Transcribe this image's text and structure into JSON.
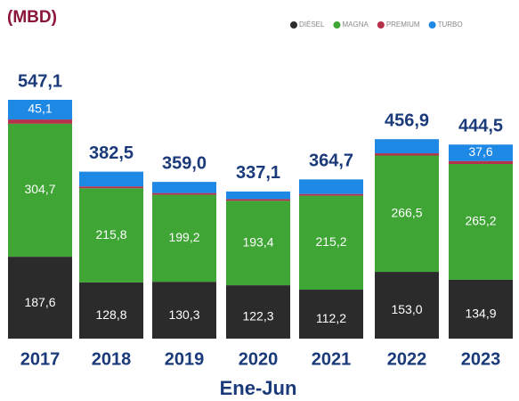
{
  "chart_data": {
    "type": "stacked_bar",
    "title": "(MBD)",
    "x_label": "Ene-Jun",
    "categories": [
      "2017",
      "2018",
      "2019",
      "2020",
      "2021",
      "2022",
      "2023"
    ],
    "series": [
      {
        "name": "DIÉSEL",
        "color": "#2b2b2b",
        "values": [
          187.6,
          128.8,
          130.3,
          122.3,
          112.2,
          153.0,
          134.9
        ],
        "value_labels": [
          "187,6",
          "128,8",
          "130,3",
          "122,3",
          "112,2",
          "153,0",
          "134,9"
        ]
      },
      {
        "name": "MAGNA",
        "color": "#3fa535",
        "values": [
          304.7,
          215.8,
          199.2,
          193.4,
          215.2,
          266.5,
          265.2
        ],
        "value_labels": [
          "304,7",
          "215,8",
          "199,2",
          "193,4",
          "215,2",
          "266,5",
          "265,2"
        ]
      },
      {
        "name": "PREMIUM",
        "color": "#b5304a",
        "values": [
          9.7,
          4,
          4,
          4,
          4,
          5,
          6.8
        ]
      },
      {
        "name": "TURBO",
        "color": "#1e88e5",
        "values": [
          45.1,
          33.9,
          25.5,
          17.4,
          33.3,
          32.4,
          37.6
        ],
        "value_labels": [
          "45,1",
          null,
          null,
          null,
          null,
          null,
          "37,6"
        ]
      }
    ],
    "totals": [
      547.1,
      382.5,
      359.0,
      337.1,
      364.7,
      456.9,
      444.5
    ],
    "total_labels": [
      "547,1",
      "382,5",
      "359,0",
      "337,1",
      "364,7",
      "456,9",
      "444,5"
    ],
    "legend": "top-right"
  }
}
